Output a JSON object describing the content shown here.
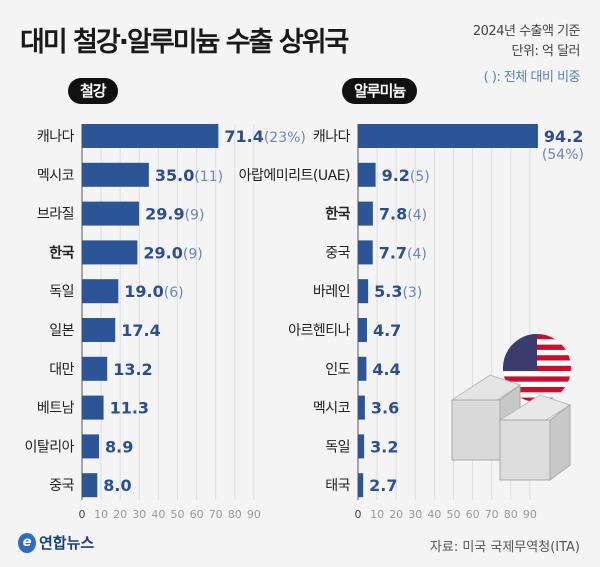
{
  "header": {
    "title": "대미 철강·알루미늄 수출 상위국",
    "basis": "2024년 수출액 기준",
    "unit": "단위: 억 달러",
    "note": "( ): 전체 대비 비중"
  },
  "footer": {
    "logo": "연합뉴스",
    "source": "자료: 미국 국제무역청(ITA)"
  },
  "colors": {
    "bar": "#2b5597",
    "value": "#2b4f8e",
    "percent": "#6a87b8",
    "grid": "#dddddd"
  },
  "chart_data": [
    {
      "type": "bar",
      "orientation": "horizontal",
      "title": "철강",
      "xlim": [
        0,
        90
      ],
      "ticks": [
        "0",
        "10",
        "20",
        "30",
        "40",
        "50",
        "60",
        "70",
        "80",
        "90"
      ],
      "grid": true,
      "categories": [
        "캐나다",
        "멕시코",
        "브라질",
        "한국",
        "독일",
        "일본",
        "대만",
        "베트남",
        "이탈리아",
        "중국"
      ],
      "values": [
        71.4,
        35.0,
        29.9,
        29.0,
        19.0,
        17.4,
        13.2,
        11.3,
        8.9,
        8.0
      ],
      "value_labels": [
        "71.4",
        "35.0",
        "29.9",
        "29.0",
        "19.0",
        "17.4",
        "13.2",
        "11.3",
        "8.9",
        "8.0"
      ],
      "share_labels": [
        "(23%)",
        "(11)",
        "(9)",
        "(9)",
        "(6)",
        "",
        "",
        "",
        "",
        ""
      ],
      "highlight": "한국"
    },
    {
      "type": "bar",
      "orientation": "horizontal",
      "title": "알루미늄",
      "xlim": [
        0,
        90
      ],
      "ticks": [
        "0",
        "10",
        "20",
        "30",
        "40",
        "50",
        "60",
        "70",
        "80",
        "90"
      ],
      "grid": true,
      "categories": [
        "캐나다",
        "아랍에미리트(UAE)",
        "한국",
        "중국",
        "바레인",
        "아르헨티나",
        "인도",
        "멕시코",
        "독일",
        "태국"
      ],
      "values": [
        94.2,
        9.2,
        7.8,
        7.7,
        5.3,
        4.7,
        4.4,
        3.6,
        3.2,
        2.7
      ],
      "value_labels": [
        "94.2",
        "9.2",
        "7.8",
        "7.7",
        "5.3",
        "4.7",
        "4.4",
        "3.6",
        "3.2",
        "2.7"
      ],
      "share_labels": [
        "(54%)",
        "(5)",
        "(4)",
        "(4)",
        "(3)",
        "",
        "",
        "",
        "",
        ""
      ],
      "highlight": "한국"
    }
  ]
}
